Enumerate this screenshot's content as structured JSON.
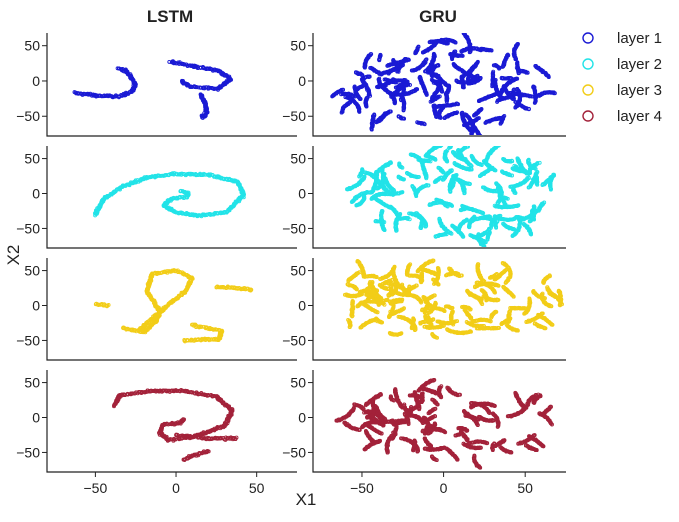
{
  "figure": {
    "columns": [
      "LSTM",
      "GRU"
    ],
    "xlabel": "X1",
    "ylabel": "X2",
    "legend": {
      "placement": "top-right",
      "entries": [
        {
          "label": "layer 1",
          "color": "#1a1ad4"
        },
        {
          "label": "layer 2",
          "color": "#22e3e8"
        },
        {
          "label": "layer 3",
          "color": "#f2cd18"
        },
        {
          "label": "layer 4",
          "color": "#a3223a"
        }
      ]
    }
  },
  "chart_data": {
    "type": "scatter",
    "layout": "grid 4 rows x 2 columns, shared axes",
    "xlim": [
      -80,
      75
    ],
    "ylim": [
      -78,
      68
    ],
    "xticks": [
      -50,
      0,
      50
    ],
    "yticks": [
      50,
      0,
      -50
    ],
    "xtick_labels": [
      "−50",
      "0",
      "50"
    ],
    "ytick_labels": [
      "50",
      "0",
      "−50"
    ],
    "grid": false,
    "marker": "open circle",
    "panels": [
      {
        "model": "LSTM",
        "series": "layer 1",
        "color": "#1a1ad4",
        "shape": "curved strands",
        "curves": [
          [
            [
              -63,
              -17
            ],
            [
              -48,
              -21
            ],
            [
              -36,
              -22
            ],
            [
              -28,
              -16
            ],
            [
              -25,
              -5
            ],
            [
              -31,
              15
            ],
            [
              -36,
              18
            ]
          ],
          [
            [
              -4,
              28
            ],
            [
              8,
              22
            ],
            [
              26,
              15
            ],
            [
              34,
              3
            ],
            [
              26,
              -11
            ],
            [
              9,
              -8
            ],
            [
              3,
              0
            ]
          ],
          [
            [
              15,
              -19
            ],
            [
              18,
              -30
            ],
            [
              19,
              -45
            ],
            [
              16,
              -52
            ]
          ]
        ]
      },
      {
        "model": "GRU",
        "series": "layer 1",
        "color": "#1a1ad4",
        "shape": "dense cloud",
        "cloud": {
          "x": [
            -65,
            62
          ],
          "y": [
            -65,
            57
          ]
        }
      },
      {
        "model": "LSTM",
        "series": "layer 2",
        "color": "#22e3e8",
        "shape": "curved strands",
        "curves": [
          [
            [
              -50,
              -30
            ],
            [
              -45,
              -8
            ],
            [
              -33,
              10
            ],
            [
              -18,
              23
            ],
            [
              0,
              28
            ],
            [
              20,
              27
            ],
            [
              38,
              17
            ],
            [
              42,
              -2
            ],
            [
              32,
              -26
            ],
            [
              15,
              -32
            ],
            [
              0,
              -27
            ],
            [
              -8,
              -17
            ],
            [
              -3,
              -8
            ],
            [
              6,
              -5
            ],
            [
              8,
              0
            ],
            [
              3,
              3
            ]
          ]
        ]
      },
      {
        "model": "GRU",
        "series": "layer 2",
        "color": "#22e3e8",
        "shape": "dense cloud",
        "cloud": {
          "x": [
            -58,
            68
          ],
          "y": [
            -65,
            68
          ]
        }
      },
      {
        "model": "LSTM",
        "series": "layer 3",
        "color": "#f2cd18",
        "shape": "curved strands",
        "curves": [
          [
            [
              -33,
              -32
            ],
            [
              -20,
              -38
            ],
            [
              -12,
              -22
            ],
            [
              -10,
              -8
            ],
            [
              -18,
              20
            ],
            [
              -15,
              45
            ],
            [
              0,
              50
            ],
            [
              10,
              40
            ],
            [
              6,
              20
            ],
            [
              -3,
              5
            ],
            [
              -15,
              -20
            ],
            [
              -23,
              -35
            ]
          ],
          [
            [
              25,
              27
            ],
            [
              47,
              23
            ]
          ],
          [
            [
              -50,
              2
            ],
            [
              -42,
              0
            ]
          ],
          [
            [
              10,
              -28
            ],
            [
              28,
              -36
            ],
            [
              27,
              -48
            ],
            [
              5,
              -50
            ]
          ]
        ]
      },
      {
        "model": "GRU",
        "series": "layer 3",
        "color": "#f2cd18",
        "shape": "dense cloud",
        "cloud": {
          "x": [
            -70,
            75
          ],
          "y": [
            -45,
            60
          ]
        }
      },
      {
        "model": "LSTM",
        "series": "layer 4",
        "color": "#a3223a",
        "shape": "curved strands",
        "curves": [
          [
            [
              -38,
              17
            ],
            [
              -35,
              32
            ],
            [
              -15,
              38
            ],
            [
              5,
              38
            ],
            [
              25,
              30
            ],
            [
              35,
              10
            ],
            [
              30,
              -12
            ],
            [
              10,
              -28
            ],
            [
              -5,
              -32
            ],
            [
              -10,
              -22
            ],
            [
              -8,
              -10
            ],
            [
              2,
              -8
            ],
            [
              5,
              -3
            ]
          ],
          [
            [
              0,
              -25
            ],
            [
              20,
              -30
            ],
            [
              38,
              -30
            ]
          ],
          [
            [
              20,
              -48
            ],
            [
              10,
              -55
            ],
            [
              5,
              -60
            ]
          ]
        ]
      },
      {
        "model": "GRU",
        "series": "layer 4",
        "color": "#a3223a",
        "shape": "dense cloud",
        "cloud": {
          "x": [
            -65,
            68
          ],
          "y": [
            -60,
            50
          ]
        }
      }
    ]
  }
}
